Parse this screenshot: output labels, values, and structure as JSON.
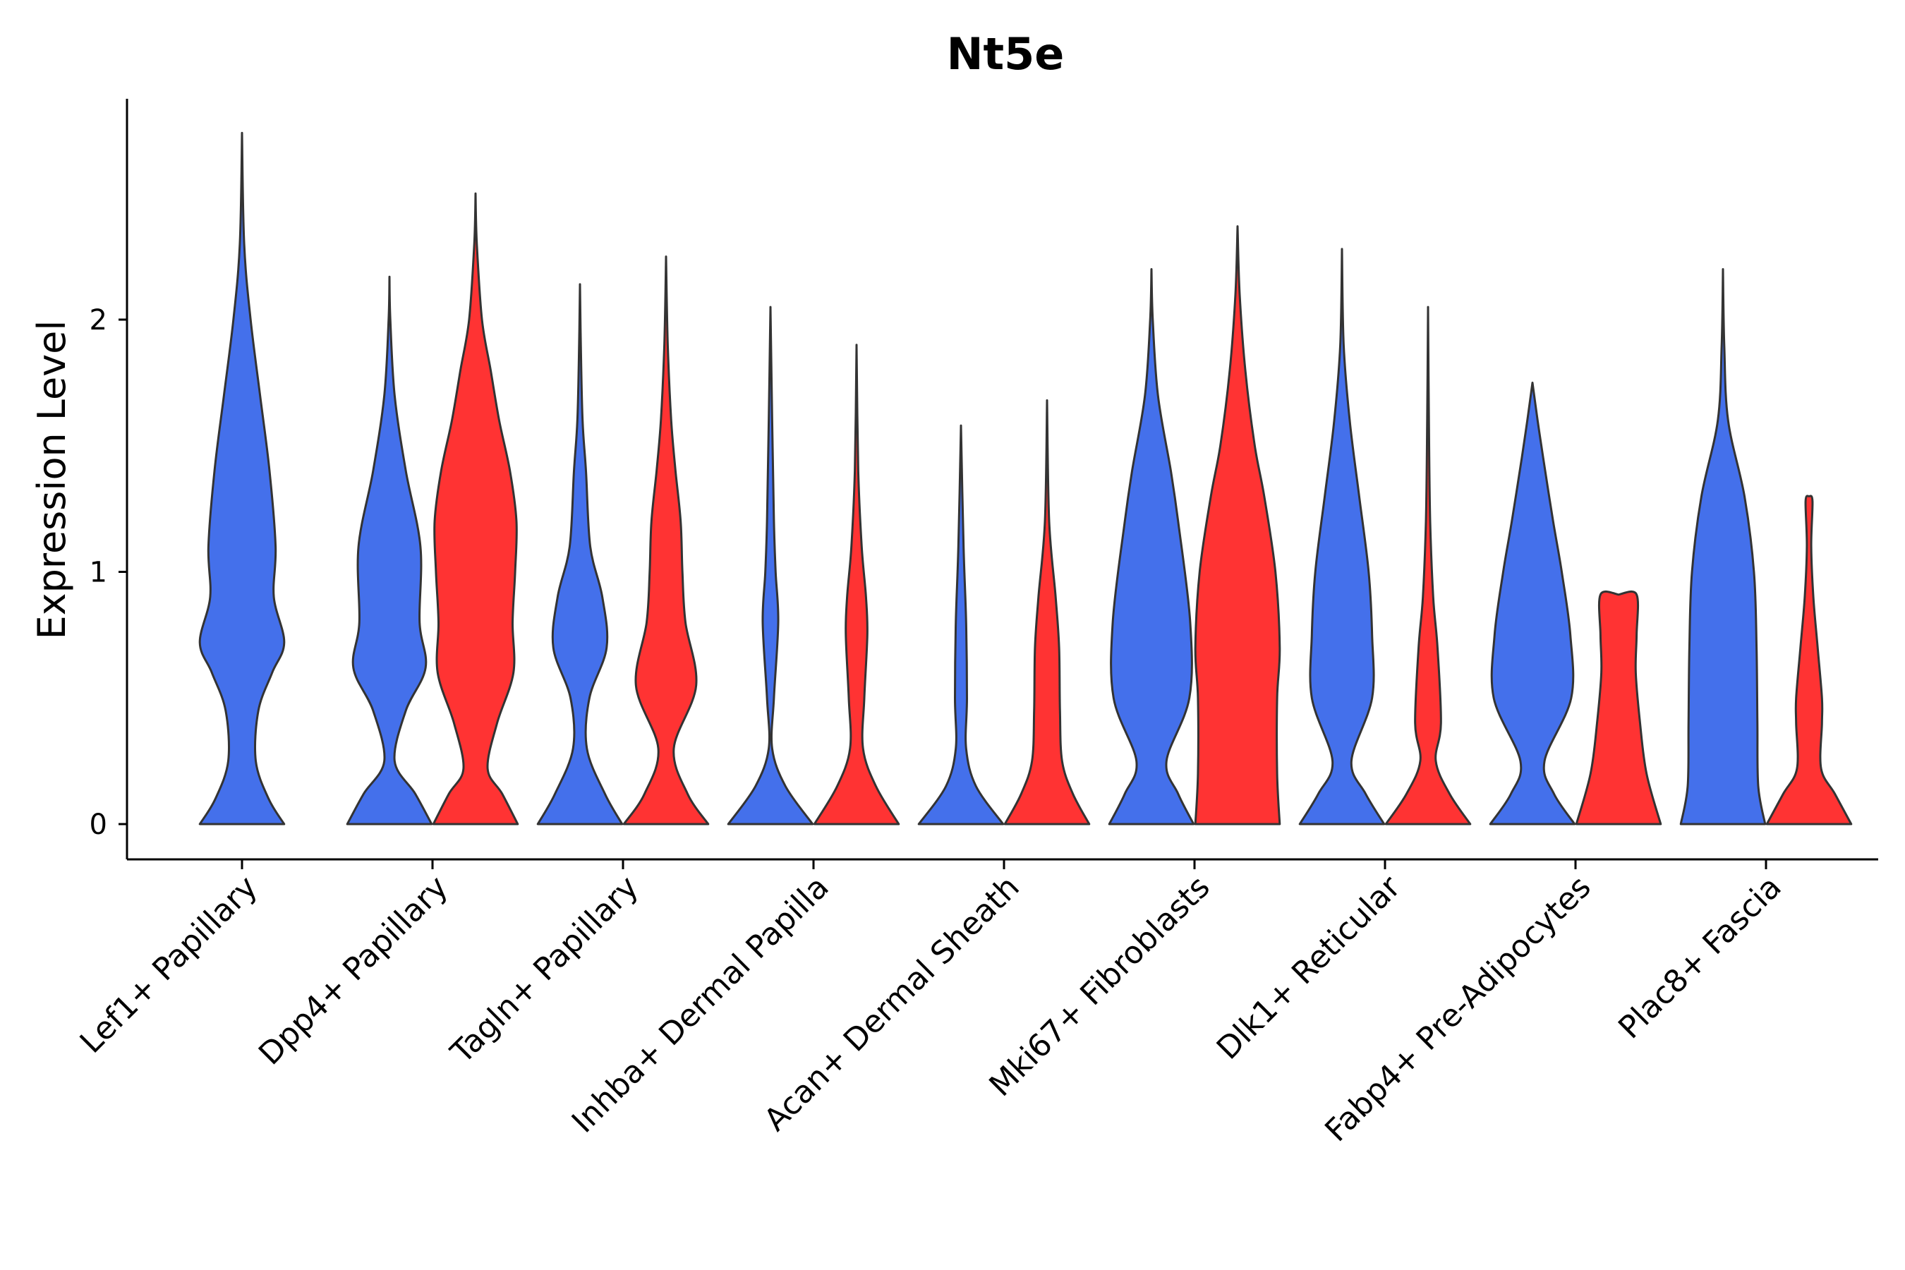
{
  "chart_data": {
    "type": "violin",
    "title": "Nt5e",
    "xlabel": "",
    "ylabel": "Expression Level",
    "ylim": [
      -0.14,
      2.88
    ],
    "yticks": [
      0,
      1,
      2
    ],
    "grid": false,
    "legend": "none",
    "colors": {
      "group1": "#4470EB",
      "group2": "#FF3333",
      "outline": "#333333"
    },
    "categories": [
      "Lef1+ Papillary",
      "Dpp4+ Papillary",
      "Tagln+ Papillary",
      "Inhba+ Dermal Papilla",
      "Acan+ Dermal Sheath",
      "Mki67+ Fibroblasts",
      "Dlk1+ Reticular",
      "Fabp4+ Pre-Adipocytes",
      "Plac8+ Fascia"
    ],
    "violins": [
      {
        "category": "Lef1+ Papillary",
        "group": 1,
        "max": 2.74,
        "profile": [
          [
            0,
            0.98
          ],
          [
            0.1,
            0.62
          ],
          [
            0.25,
            0.32
          ],
          [
            0.45,
            0.38
          ],
          [
            0.6,
            0.7
          ],
          [
            0.72,
            0.98
          ],
          [
            0.9,
            0.74
          ],
          [
            1.1,
            0.78
          ],
          [
            1.4,
            0.64
          ],
          [
            1.7,
            0.42
          ],
          [
            2.0,
            0.2
          ],
          [
            2.3,
            0.05
          ],
          [
            2.74,
            0
          ]
        ]
      },
      {
        "category": "Dpp4+ Papillary",
        "group": 1,
        "max": 2.17,
        "profile": [
          [
            0,
            0.98
          ],
          [
            0.12,
            0.6
          ],
          [
            0.25,
            0.12
          ],
          [
            0.45,
            0.38
          ],
          [
            0.62,
            0.84
          ],
          [
            0.8,
            0.7
          ],
          [
            1.1,
            0.72
          ],
          [
            1.4,
            0.38
          ],
          [
            1.7,
            0.12
          ],
          [
            2.0,
            0.02
          ],
          [
            2.17,
            0
          ]
        ]
      },
      {
        "category": "Dpp4+ Papillary",
        "group": 2,
        "max": 2.5,
        "profile": [
          [
            0,
            0.98
          ],
          [
            0.12,
            0.62
          ],
          [
            0.22,
            0.28
          ],
          [
            0.4,
            0.5
          ],
          [
            0.6,
            0.88
          ],
          [
            0.8,
            0.86
          ],
          [
            1.0,
            0.92
          ],
          [
            1.2,
            0.95
          ],
          [
            1.4,
            0.8
          ],
          [
            1.6,
            0.55
          ],
          [
            1.8,
            0.35
          ],
          [
            2.0,
            0.15
          ],
          [
            2.3,
            0.03
          ],
          [
            2.5,
            0
          ]
        ]
      },
      {
        "category": "Tagln+ Papillary",
        "group": 1,
        "max": 2.14,
        "profile": [
          [
            0,
            0.98
          ],
          [
            0.12,
            0.58
          ],
          [
            0.3,
            0.16
          ],
          [
            0.5,
            0.22
          ],
          [
            0.7,
            0.62
          ],
          [
            0.9,
            0.52
          ],
          [
            1.1,
            0.24
          ],
          [
            1.4,
            0.14
          ],
          [
            1.6,
            0.06
          ],
          [
            1.9,
            0.02
          ],
          [
            2.14,
            0
          ]
        ]
      },
      {
        "category": "Tagln+ Papillary",
        "group": 2,
        "max": 2.25,
        "profile": [
          [
            0,
            0.98
          ],
          [
            0.12,
            0.5
          ],
          [
            0.3,
            0.18
          ],
          [
            0.55,
            0.7
          ],
          [
            0.8,
            0.45
          ],
          [
            1.0,
            0.38
          ],
          [
            1.2,
            0.34
          ],
          [
            1.4,
            0.22
          ],
          [
            1.6,
            0.12
          ],
          [
            1.9,
            0.04
          ],
          [
            2.25,
            0
          ]
        ]
      },
      {
        "category": "Inhba+ Dermal Papilla",
        "group": 1,
        "max": 2.05,
        "profile": [
          [
            0,
            0.98
          ],
          [
            0.15,
            0.35
          ],
          [
            0.3,
            0.04
          ],
          [
            0.5,
            0.08
          ],
          [
            0.8,
            0.18
          ],
          [
            1.0,
            0.12
          ],
          [
            1.2,
            0.08
          ],
          [
            1.6,
            0.04
          ],
          [
            2.05,
            0
          ]
        ]
      },
      {
        "category": "Inhba+ Dermal Papilla",
        "group": 2,
        "max": 1.9,
        "profile": [
          [
            0,
            0.98
          ],
          [
            0.15,
            0.45
          ],
          [
            0.3,
            0.15
          ],
          [
            0.5,
            0.18
          ],
          [
            0.75,
            0.25
          ],
          [
            0.9,
            0.22
          ],
          [
            1.1,
            0.12
          ],
          [
            1.4,
            0.04
          ],
          [
            1.9,
            0
          ]
        ]
      },
      {
        "category": "Acan+ Dermal Sheath",
        "group": 1,
        "max": 1.58,
        "profile": [
          [
            0,
            0.98
          ],
          [
            0.15,
            0.35
          ],
          [
            0.3,
            0.12
          ],
          [
            0.5,
            0.14
          ],
          [
            0.8,
            0.12
          ],
          [
            1.1,
            0.06
          ],
          [
            1.58,
            0
          ]
        ]
      },
      {
        "category": "Acan+ Dermal Sheath",
        "group": 2,
        "max": 1.68,
        "profile": [
          [
            0,
            0.98
          ],
          [
            0.12,
            0.6
          ],
          [
            0.25,
            0.35
          ],
          [
            0.45,
            0.3
          ],
          [
            0.7,
            0.28
          ],
          [
            0.9,
            0.2
          ],
          [
            1.2,
            0.05
          ],
          [
            1.68,
            0
          ]
        ]
      },
      {
        "category": "Mki67+ Fibroblasts",
        "group": 1,
        "max": 2.2,
        "profile": [
          [
            0,
            0.98
          ],
          [
            0.12,
            0.62
          ],
          [
            0.25,
            0.35
          ],
          [
            0.5,
            0.88
          ],
          [
            0.8,
            0.9
          ],
          [
            1.2,
            0.62
          ],
          [
            1.4,
            0.45
          ],
          [
            1.7,
            0.15
          ],
          [
            2.0,
            0.03
          ],
          [
            2.2,
            0
          ]
        ]
      },
      {
        "category": "Mki67+ Fibroblasts",
        "group": 2,
        "max": 2.37,
        "profile": [
          [
            0,
            0.98
          ],
          [
            0.2,
            0.92
          ],
          [
            0.5,
            0.92
          ],
          [
            0.7,
            0.98
          ],
          [
            1.0,
            0.88
          ],
          [
            1.3,
            0.62
          ],
          [
            1.5,
            0.4
          ],
          [
            1.8,
            0.18
          ],
          [
            2.1,
            0.05
          ],
          [
            2.37,
            0
          ]
        ]
      },
      {
        "category": "Dlk1+ Reticular",
        "group": 1,
        "max": 2.28,
        "profile": [
          [
            0,
            0.98
          ],
          [
            0.12,
            0.55
          ],
          [
            0.25,
            0.22
          ],
          [
            0.5,
            0.7
          ],
          [
            0.75,
            0.7
          ],
          [
            1.0,
            0.62
          ],
          [
            1.3,
            0.4
          ],
          [
            1.6,
            0.18
          ],
          [
            1.9,
            0.04
          ],
          [
            2.28,
            0
          ]
        ]
      },
      {
        "category": "Dlk1+ Reticular",
        "group": 2,
        "max": 2.05,
        "profile": [
          [
            0,
            0.98
          ],
          [
            0.12,
            0.5
          ],
          [
            0.25,
            0.18
          ],
          [
            0.4,
            0.3
          ],
          [
            0.7,
            0.22
          ],
          [
            0.9,
            0.12
          ],
          [
            1.2,
            0.05
          ],
          [
            1.6,
            0.02
          ],
          [
            2.05,
            0
          ]
        ]
      },
      {
        "category": "Fabp4+ Pre-Adipocytes",
        "group": 1,
        "max": 1.75,
        "profile": [
          [
            0,
            0.98
          ],
          [
            0.12,
            0.5
          ],
          [
            0.25,
            0.28
          ],
          [
            0.5,
            0.9
          ],
          [
            0.75,
            0.88
          ],
          [
            1.0,
            0.68
          ],
          [
            1.2,
            0.48
          ],
          [
            1.45,
            0.25
          ],
          [
            1.6,
            0.12
          ],
          [
            1.75,
            0
          ]
        ]
      },
      {
        "category": "Fabp4+ Pre-Adipocytes",
        "group": 2,
        "max": 0.91,
        "profile": [
          [
            0,
            0.98
          ],
          [
            0.2,
            0.65
          ],
          [
            0.4,
            0.5
          ],
          [
            0.6,
            0.4
          ],
          [
            0.75,
            0.42
          ],
          [
            0.91,
            0.42
          ],
          [
            0.91,
            0
          ]
        ]
      },
      {
        "category": "Plac8+ Fascia",
        "group": 1,
        "max": 2.2,
        "profile": [
          [
            0,
            0.98
          ],
          [
            0.15,
            0.82
          ],
          [
            0.4,
            0.8
          ],
          [
            0.7,
            0.78
          ],
          [
            1.0,
            0.72
          ],
          [
            1.3,
            0.5
          ],
          [
            1.6,
            0.12
          ],
          [
            1.9,
            0.03
          ],
          [
            2.2,
            0
          ]
        ]
      },
      {
        "category": "Plac8+ Fascia",
        "group": 2,
        "max": 1.3,
        "profile": [
          [
            0,
            0.98
          ],
          [
            0.12,
            0.6
          ],
          [
            0.22,
            0.28
          ],
          [
            0.4,
            0.3
          ],
          [
            0.5,
            0.3
          ],
          [
            0.7,
            0.2
          ],
          [
            0.9,
            0.1
          ],
          [
            1.1,
            0.05
          ],
          [
            1.28,
            0.08
          ],
          [
            1.3,
            0
          ]
        ]
      }
    ]
  }
}
